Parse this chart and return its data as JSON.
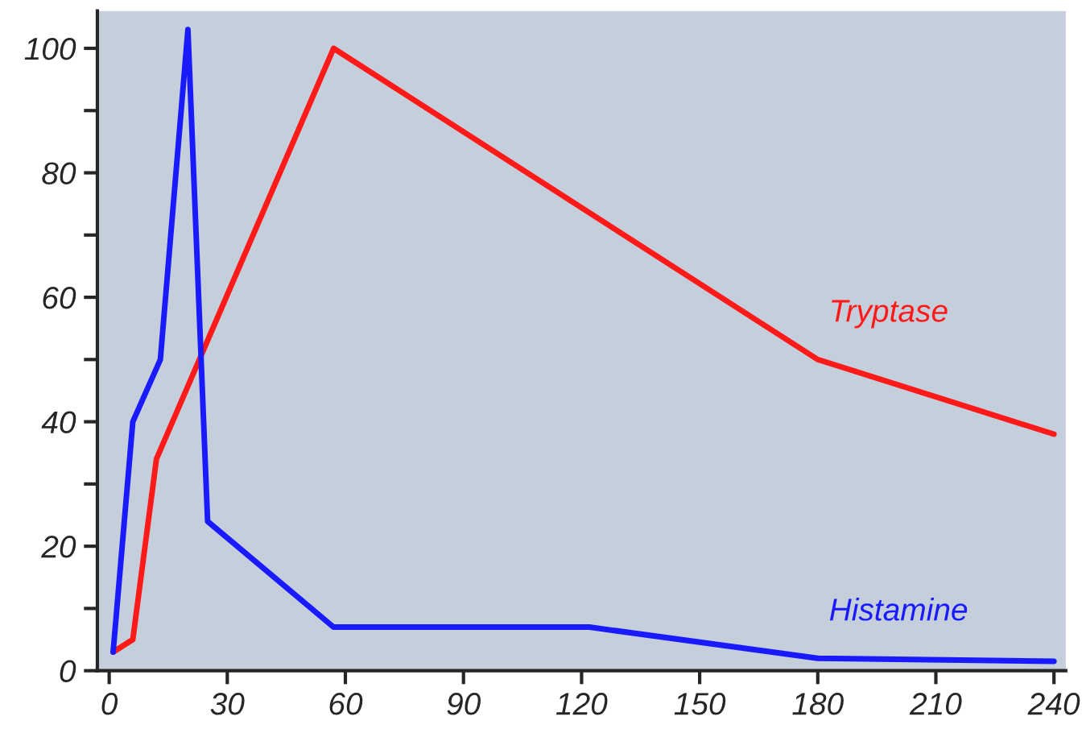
{
  "chart_data": {
    "type": "line",
    "series": [
      {
        "name": "Tryptase",
        "color": "#ff1a1a",
        "x": [
          1,
          6,
          12,
          57,
          180,
          240
        ],
        "values": [
          3,
          5,
          34,
          100,
          50,
          38
        ]
      },
      {
        "name": "Histamine",
        "color": "#1a1aff",
        "x": [
          1,
          6,
          13,
          20,
          25,
          57,
          122,
          180,
          240
        ],
        "values": [
          3,
          40,
          50,
          103,
          24,
          7,
          7,
          2,
          1.5
        ]
      }
    ],
    "xlim": [
      -3,
      243
    ],
    "ylim": [
      0,
      106
    ],
    "xticks": [
      0,
      30,
      60,
      90,
      120,
      150,
      180,
      210,
      240
    ],
    "yticks": [
      0,
      {
        "value": 10,
        "label": null
      },
      20,
      {
        "value": 30,
        "label": null
      },
      40,
      {
        "value": 50,
        "label": null
      },
      60,
      {
        "value": 70,
        "label": null
      },
      80,
      {
        "value": 90,
        "label": null
      },
      100
    ],
    "grid": false,
    "legend": false,
    "marker": "none",
    "line_style": "solid"
  }
}
